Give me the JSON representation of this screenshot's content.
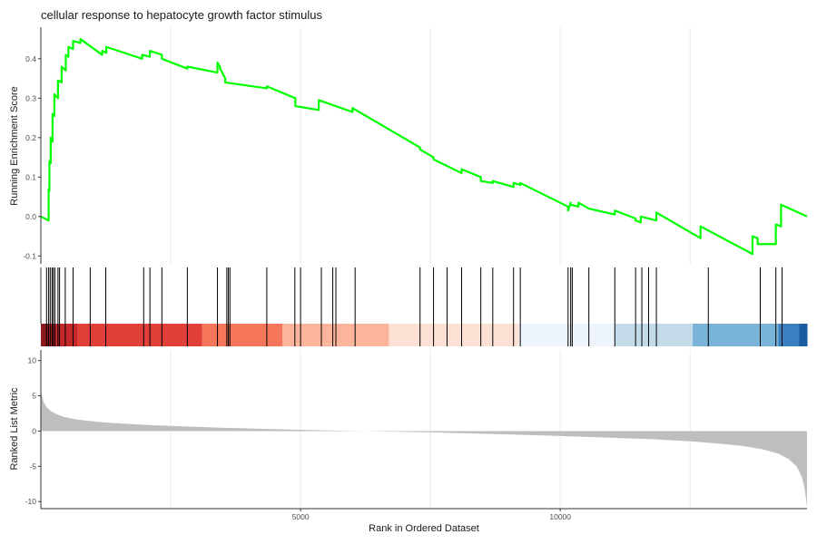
{
  "chart_data": {
    "type": "line",
    "title": "cellular response to hepatocyte growth factor stimulus",
    "xlabel": "Rank in Ordered Dataset",
    "x_ticks": [
      5000,
      10000
    ],
    "xlim": [
      0,
      14750
    ],
    "panels": {
      "running_score": {
        "ylabel": "Running Enrichment Score",
        "ylim": [
          -0.12,
          0.48
        ],
        "y_ticks": [
          -0.1,
          0.0,
          0.1,
          0.2,
          0.3,
          0.4
        ],
        "y_tick_labels": [
          "-0.1",
          "0.0",
          "0.1",
          "0.2",
          "0.3",
          "0.4"
        ],
        "line_color": "#00ff00",
        "series": [
          {
            "x": [
              0,
              150,
              150,
              165,
              165,
              190,
              190,
              225,
              225,
              260,
              260,
              330,
              330,
              400,
              400,
              480,
              480,
              530,
              530,
              620,
              620,
              760,
              760,
              1180,
              1180,
              1260,
              1260,
              1950,
              1950,
              2100,
              2100,
              2330,
              2330,
              2820,
              2820,
              3400,
              3400,
              3450,
              3450,
              3550,
              3550,
              4350,
              4350,
              4900,
              4900,
              5350,
              5350,
              6000,
              6000,
              7300,
              7300,
              7560,
              7560,
              8100,
              8100,
              8470,
              8470,
              8700,
              8700,
              9100,
              9100,
              9230,
              9230,
              10150,
              10150,
              10200,
              10200,
              10350,
              10350,
              10550,
              10550,
              11050,
              11050,
              11450,
              11450,
              11550,
              11550,
              11850,
              11850,
              12700,
              12700,
              13700,
              13700,
              13800,
              13800,
              14150,
              14150,
              14250,
              14250,
              14750
            ],
            "y": [
              0.0,
              -0.01,
              0.07,
              0.065,
              0.14,
              0.135,
              0.2,
              0.19,
              0.26,
              0.255,
              0.31,
              0.3,
              0.345,
              0.34,
              0.38,
              0.37,
              0.41,
              0.405,
              0.43,
              0.425,
              0.445,
              0.44,
              0.45,
              0.41,
              0.42,
              0.415,
              0.43,
              0.4,
              0.41,
              0.405,
              0.42,
              0.41,
              0.4,
              0.375,
              0.38,
              0.365,
              0.39,
              0.38,
              0.375,
              0.35,
              0.34,
              0.325,
              0.33,
              0.3,
              0.28,
              0.27,
              0.295,
              0.265,
              0.275,
              0.175,
              0.17,
              0.15,
              0.145,
              0.11,
              0.12,
              0.1,
              0.09,
              0.085,
              0.09,
              0.075,
              0.085,
              0.08,
              0.085,
              0.025,
              0.015,
              0.035,
              0.03,
              0.025,
              0.035,
              0.02,
              0.02,
              0.005,
              0.015,
              -0.005,
              -0.01,
              -0.015,
              0.0,
              -0.01,
              0.01,
              -0.055,
              -0.025,
              -0.095,
              -0.05,
              -0.055,
              -0.07,
              -0.07,
              -0.02,
              -0.025,
              0.03,
              0.0
            ]
          }
        ]
      },
      "gene_hits": {
        "positions": [
          110,
          150,
          180,
          215,
          240,
          270,
          330,
          360,
          470,
          620,
          950,
          1250,
          1980,
          2100,
          2330,
          2820,
          3400,
          3580,
          3610,
          3640,
          4350,
          4890,
          5000,
          5400,
          5620,
          5680,
          6050,
          7300,
          7560,
          7820,
          8100,
          8470,
          8700,
          9100,
          9230,
          10150,
          10200,
          10230,
          10550,
          11050,
          11450,
          11570,
          11700,
          11850,
          12850,
          13850,
          14150,
          14270
        ]
      },
      "color_bar": {
        "segments": [
          {
            "start": 0,
            "end": 150,
            "color": "#8b1a1a"
          },
          {
            "start": 150,
            "end": 700,
            "color": "#c52828"
          },
          {
            "start": 700,
            "end": 3100,
            "color": "#e04038"
          },
          {
            "start": 3100,
            "end": 4650,
            "color": "#f5765a"
          },
          {
            "start": 4650,
            "end": 6700,
            "color": "#fcb59c"
          },
          {
            "start": 6700,
            "end": 9200,
            "color": "#fde1d5"
          },
          {
            "start": 9200,
            "end": 11050,
            "color": "#edf4fb"
          },
          {
            "start": 11050,
            "end": 12550,
            "color": "#c3dbe8"
          },
          {
            "start": 12550,
            "end": 14200,
            "color": "#7ab3d8"
          },
          {
            "start": 14200,
            "end": 14600,
            "color": "#3a7fc0"
          },
          {
            "start": 14600,
            "end": 14750,
            "color": "#1b5ca0"
          }
        ]
      },
      "ranked_metric": {
        "ylabel": "Ranked List Metric",
        "ylim": [
          -11,
          11.5
        ],
        "y_ticks": [
          10,
          5,
          0,
          -5,
          -10
        ],
        "y_tick_labels": [
          "10",
          "5",
          "0",
          "-5",
          "-10"
        ],
        "fill_color": "#bebebe",
        "series": [
          {
            "x": [
              0,
              20,
              60,
              120,
              200,
              300,
              450,
              650,
              900,
              1200,
              1600,
              2100,
              2800,
              3600,
              4600,
              5600,
              6600,
              7600,
              8600,
              9600,
              10400,
              11200,
              11900,
              12500,
              13000,
              13500,
              13900,
              14200,
              14400,
              14550,
              14650,
              14700,
              14730,
              14750
            ],
            "y": [
              6.0,
              5.0,
              4.0,
              3.3,
              2.8,
              2.4,
              2.0,
              1.7,
              1.45,
              1.25,
              1.05,
              0.85,
              0.65,
              0.45,
              0.25,
              0.08,
              -0.05,
              -0.2,
              -0.4,
              -0.6,
              -0.8,
              -1.0,
              -1.2,
              -1.45,
              -1.75,
              -2.1,
              -2.6,
              -3.2,
              -4.0,
              -5.0,
              -6.5,
              -8.0,
              -9.5,
              -10.8
            ]
          }
        ]
      }
    }
  }
}
